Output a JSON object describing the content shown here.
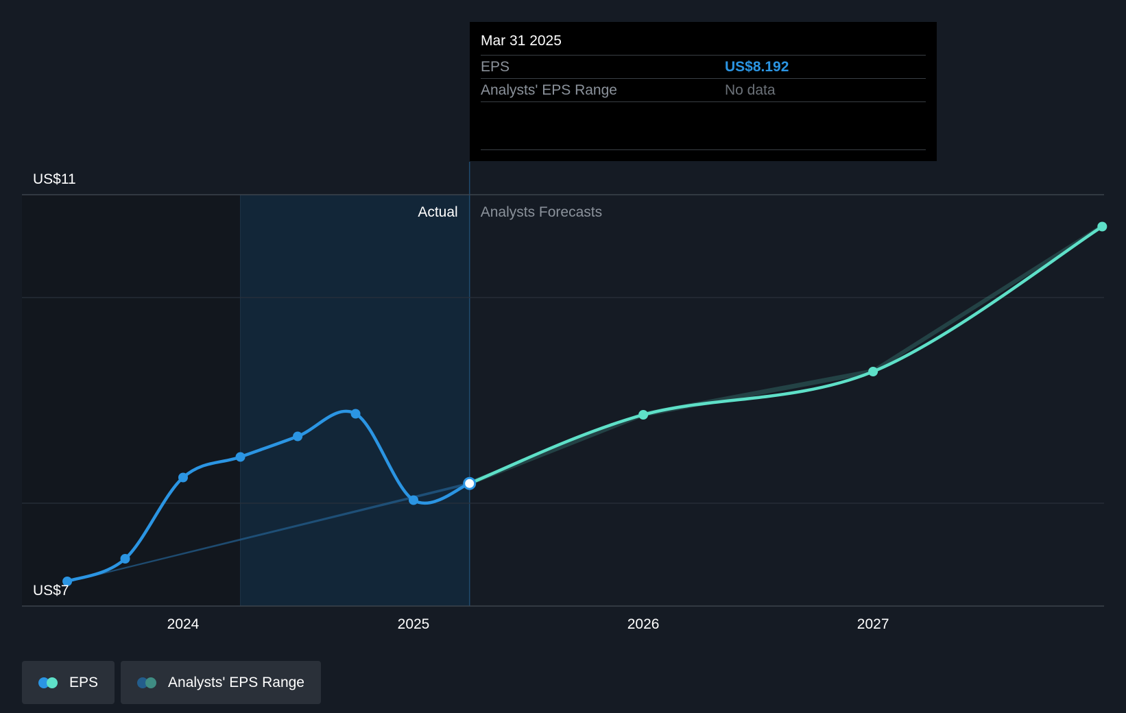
{
  "chart_data": {
    "type": "line",
    "y_axis": {
      "min_label": "US$7",
      "max_label": "US$11",
      "ylim": [
        7,
        11
      ]
    },
    "x_ticks": [
      "2024",
      "2025",
      "2026",
      "2027"
    ],
    "sections": {
      "actual_label": "Actual",
      "forecast_label": "Analysts Forecasts"
    },
    "series": [
      {
        "name": "EPS",
        "color": "#2b95e3",
        "points": [
          {
            "x": "2023-07-01",
            "y": 7.24
          },
          {
            "x": "2023-10-01",
            "y": 7.46
          },
          {
            "x": "2024-01-01",
            "y": 8.25
          },
          {
            "x": "2024-04-01",
            "y": 8.45
          },
          {
            "x": "2024-07-01",
            "y": 8.65
          },
          {
            "x": "2024-10-01",
            "y": 8.87
          },
          {
            "x": "2025-01-01",
            "y": 8.03
          },
          {
            "x": "2025-03-31",
            "y": 8.192
          }
        ]
      },
      {
        "name": "EPS forecast",
        "color": "#5ee0c8",
        "points": [
          {
            "x": "2025-03-31",
            "y": 8.192
          },
          {
            "x": "2026-01-01",
            "y": 8.86
          },
          {
            "x": "2027-01-01",
            "y": 9.28
          },
          {
            "x": "2027-12-31",
            "y": 10.69
          }
        ]
      }
    ]
  },
  "tooltip": {
    "date": "Mar 31 2025",
    "rows": [
      {
        "label": "EPS",
        "value": "US$8.192"
      },
      {
        "label": "Analysts' EPS Range",
        "value": "No data"
      }
    ]
  },
  "legend": [
    {
      "label": "EPS",
      "colors": [
        "#2b95e3",
        "#5ee0c8"
      ]
    },
    {
      "label": "Analysts' EPS Range",
      "colors": [
        "#235d8c",
        "#3f8c83"
      ]
    }
  ],
  "colors": {
    "background": "#151b24",
    "actual_band": "#122638",
    "past_band": "#12171e",
    "eps_actual": "#2b95e3",
    "eps_forecast": "#5ee0c8"
  }
}
